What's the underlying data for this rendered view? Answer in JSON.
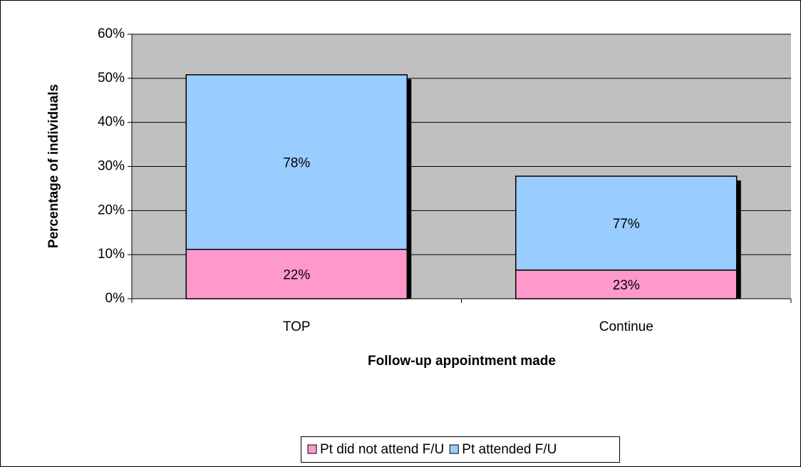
{
  "chart_data": {
    "type": "stacked_bar",
    "x_label": "Follow-up appointment made",
    "y_label": "Percentage of individuals",
    "categories": [
      "TOP",
      "Continue"
    ],
    "series": [
      {
        "name": "Pt did not attend F/U",
        "color": "#ff99cc",
        "values": [
          11.2,
          6.5
        ],
        "share_labels": [
          "22%",
          "23%"
        ]
      },
      {
        "name": "Pt attended F/U",
        "color": "#99ccff",
        "values": [
          39.6,
          21.3
        ],
        "share_labels": [
          "78%",
          "77%"
        ]
      }
    ],
    "ylim": [
      0,
      60
    ],
    "yticks": [
      {
        "value": 0,
        "label": "0%"
      },
      {
        "value": 10,
        "label": "10%"
      },
      {
        "value": 20,
        "label": "20%"
      },
      {
        "value": 30,
        "label": "30%"
      },
      {
        "value": 40,
        "label": "40%"
      },
      {
        "value": 50,
        "label": "50%"
      },
      {
        "value": 60,
        "label": "60%"
      }
    ],
    "grid": true,
    "plot_background": "#c0c0c0",
    "legend": "bottom"
  }
}
